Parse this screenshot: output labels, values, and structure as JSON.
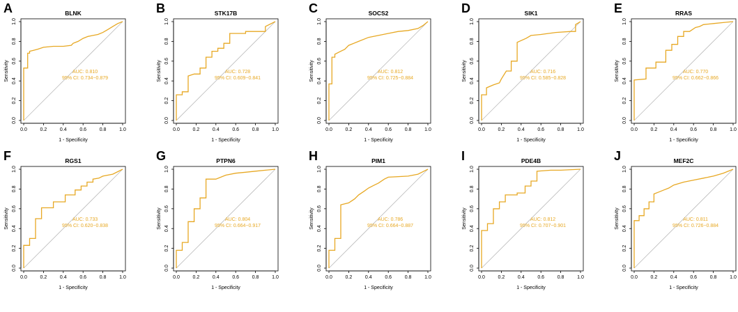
{
  "figure": {
    "curve_color": "#E7A823",
    "diagonal_color": "#BBBBBB",
    "axis_color": "#000000"
  },
  "chart_data": [
    {
      "type": "line",
      "panel": "A",
      "title": "BLNK",
      "xlabel": "1 - Specificity",
      "ylabel": "Sensitivity",
      "xlim": [
        0,
        1
      ],
      "ylim": [
        0,
        1
      ],
      "xticks": [
        "0.0",
        "0.2",
        "0.4",
        "0.6",
        "0.8",
        "1.0"
      ],
      "yticks": [
        "0.0",
        "0.2",
        "0.4",
        "0.6",
        "0.8",
        "1.0"
      ],
      "auc_label": "AUC: 0.810",
      "ci_label": "95% CI: 0.734−0.879",
      "x": [
        0,
        0,
        0.04,
        0.04,
        0.06,
        0.06,
        0.1,
        0.14,
        0.2,
        0.3,
        0.4,
        0.48,
        0.5,
        0.55,
        0.6,
        0.65,
        0.7,
        0.75,
        0.8,
        0.85,
        0.9,
        0.95,
        1
      ],
      "y": [
        0,
        0.53,
        0.53,
        0.68,
        0.68,
        0.7,
        0.71,
        0.72,
        0.74,
        0.75,
        0.75,
        0.76,
        0.78,
        0.8,
        0.83,
        0.85,
        0.86,
        0.87,
        0.89,
        0.92,
        0.95,
        0.98,
        1
      ]
    },
    {
      "type": "line",
      "panel": "B",
      "title": "STK17B",
      "xlabel": "1 - Specificity",
      "ylabel": "Sensitivity",
      "xlim": [
        0,
        1
      ],
      "ylim": [
        0,
        1
      ],
      "xticks": [
        "0.0",
        "0.2",
        "0.4",
        "0.6",
        "0.8",
        "1.0"
      ],
      "yticks": [
        "0.0",
        "0.2",
        "0.4",
        "0.6",
        "0.8",
        "1.0"
      ],
      "auc_label": "AUC: 0.728",
      "ci_label": "95% CI: 0.609−0.841",
      "x": [
        0,
        0,
        0.06,
        0.06,
        0.12,
        0.12,
        0.18,
        0.24,
        0.24,
        0.3,
        0.3,
        0.36,
        0.36,
        0.42,
        0.42,
        0.48,
        0.48,
        0.54,
        0.54,
        0.7,
        0.7,
        0.9,
        0.9,
        1
      ],
      "y": [
        0,
        0.26,
        0.26,
        0.29,
        0.29,
        0.45,
        0.47,
        0.47,
        0.53,
        0.53,
        0.64,
        0.64,
        0.7,
        0.7,
        0.73,
        0.73,
        0.78,
        0.78,
        0.88,
        0.88,
        0.9,
        0.9,
        0.95,
        1
      ]
    },
    {
      "type": "line",
      "panel": "C",
      "title": "SOCS2",
      "xlabel": "1 - Specificity",
      "ylabel": "Sensitivity",
      "xlim": [
        0,
        1
      ],
      "ylim": [
        0,
        1
      ],
      "xticks": [
        "0.0",
        "0.2",
        "0.4",
        "0.6",
        "0.8",
        "1.0"
      ],
      "yticks": [
        "0.0",
        "0.2",
        "0.4",
        "0.6",
        "0.8",
        "1.0"
      ],
      "auc_label": "AUC: 0.812",
      "ci_label": "95% CI: 0.725−0.884",
      "x": [
        0,
        0,
        0.03,
        0.03,
        0.06,
        0.06,
        0.12,
        0.16,
        0.2,
        0.3,
        0.4,
        0.5,
        0.6,
        0.7,
        0.8,
        0.9,
        0.95,
        1
      ],
      "y": [
        0,
        0.37,
        0.37,
        0.64,
        0.64,
        0.67,
        0.7,
        0.72,
        0.76,
        0.8,
        0.84,
        0.86,
        0.88,
        0.9,
        0.91,
        0.93,
        0.96,
        1
      ]
    },
    {
      "type": "line",
      "panel": "D",
      "title": "SIK1",
      "xlabel": "1 - Specificity",
      "ylabel": "Sensitivity",
      "xlim": [
        0,
        1
      ],
      "ylim": [
        0,
        1
      ],
      "xticks": [
        "0.0",
        "0.2",
        "0.4",
        "0.6",
        "0.8",
        "1.0"
      ],
      "yticks": [
        "0.0",
        "0.2",
        "0.4",
        "0.6",
        "0.8",
        "1.0"
      ],
      "auc_label": "AUC: 0.716",
      "ci_label": "95% CI: 0.585−0.828",
      "x": [
        0,
        0,
        0.05,
        0.05,
        0.12,
        0.18,
        0.2,
        0.25,
        0.3,
        0.3,
        0.36,
        0.36,
        0.45,
        0.5,
        0.6,
        0.75,
        0.9,
        0.95,
        0.95,
        1
      ],
      "y": [
        0,
        0.26,
        0.26,
        0.33,
        0.36,
        0.38,
        0.42,
        0.5,
        0.5,
        0.6,
        0.6,
        0.79,
        0.83,
        0.86,
        0.87,
        0.89,
        0.9,
        0.9,
        0.97,
        1
      ]
    },
    {
      "type": "line",
      "panel": "E",
      "title": "RRAS",
      "xlabel": "1 - Specificity",
      "ylabel": "Sensitivity",
      "xlim": [
        0,
        1
      ],
      "ylim": [
        0,
        1
      ],
      "xticks": [
        "0.0",
        "0.2",
        "0.4",
        "0.6",
        "0.8",
        "1.0"
      ],
      "yticks": [
        "0.0",
        "0.2",
        "0.4",
        "0.6",
        "0.8",
        "1.0"
      ],
      "auc_label": "AUC: 0.770",
      "ci_label": "95% CI: 0.662−0.866",
      "x": [
        0,
        0,
        0.12,
        0.12,
        0.22,
        0.22,
        0.32,
        0.32,
        0.38,
        0.38,
        0.44,
        0.44,
        0.5,
        0.5,
        0.56,
        0.62,
        0.66,
        0.7,
        0.8,
        0.9,
        1
      ],
      "y": [
        0,
        0.41,
        0.42,
        0.53,
        0.53,
        0.59,
        0.59,
        0.71,
        0.71,
        0.77,
        0.77,
        0.85,
        0.85,
        0.9,
        0.9,
        0.94,
        0.95,
        0.97,
        0.98,
        0.99,
        1
      ]
    },
    {
      "type": "line",
      "panel": "F",
      "title": "RGS1",
      "xlabel": "1 - Specificity",
      "ylabel": "Sensitivity",
      "xlim": [
        0,
        1
      ],
      "ylim": [
        0,
        1
      ],
      "xticks": [
        "0.0",
        "0.2",
        "0.4",
        "0.6",
        "0.8",
        "1.0"
      ],
      "yticks": [
        "0.0",
        "0.2",
        "0.4",
        "0.6",
        "0.8",
        "1.0"
      ],
      "auc_label": "AUC: 0.733",
      "ci_label": "95% CI: 0.620−0.838",
      "x": [
        0,
        0,
        0.06,
        0.06,
        0.12,
        0.12,
        0.18,
        0.18,
        0.3,
        0.3,
        0.42,
        0.42,
        0.52,
        0.52,
        0.58,
        0.58,
        0.64,
        0.64,
        0.7,
        0.7,
        0.76,
        0.8,
        0.9,
        1
      ],
      "y": [
        0,
        0.23,
        0.23,
        0.3,
        0.3,
        0.5,
        0.5,
        0.61,
        0.61,
        0.67,
        0.67,
        0.74,
        0.74,
        0.79,
        0.79,
        0.83,
        0.83,
        0.87,
        0.87,
        0.9,
        0.91,
        0.93,
        0.95,
        1
      ]
    },
    {
      "type": "line",
      "panel": "G",
      "title": "PTPN6",
      "xlabel": "1 - Specificity",
      "ylabel": "Sensitivity",
      "xlim": [
        0,
        1
      ],
      "ylim": [
        0,
        1
      ],
      "xticks": [
        "0.0",
        "0.2",
        "0.4",
        "0.6",
        "0.8",
        "1.0"
      ],
      "yticks": [
        "0.0",
        "0.2",
        "0.4",
        "0.6",
        "0.8",
        "1.0"
      ],
      "auc_label": "AUC: 0.804",
      "ci_label": "95% CI: 0.664−0.917",
      "x": [
        0,
        0,
        0.06,
        0.06,
        0.12,
        0.12,
        0.18,
        0.18,
        0.24,
        0.24,
        0.3,
        0.3,
        0.4,
        0.5,
        0.6,
        0.7,
        0.8,
        0.9,
        1
      ],
      "y": [
        0,
        0.18,
        0.18,
        0.26,
        0.26,
        0.47,
        0.47,
        0.6,
        0.6,
        0.71,
        0.71,
        0.9,
        0.9,
        0.94,
        0.96,
        0.97,
        0.98,
        0.99,
        1
      ]
    },
    {
      "type": "line",
      "panel": "H",
      "title": "PIM1",
      "xlabel": "1 - Specificity",
      "ylabel": "Sensitivity",
      "xlim": [
        0,
        1
      ],
      "ylim": [
        0,
        1
      ],
      "xticks": [
        "0.0",
        "0.2",
        "0.4",
        "0.6",
        "0.8",
        "1.0"
      ],
      "yticks": [
        "0.0",
        "0.2",
        "0.4",
        "0.6",
        "0.8",
        "1.0"
      ],
      "auc_label": "AUC: 0.786",
      "ci_label": "95% CI: 0.664−0.887",
      "x": [
        0,
        0,
        0.06,
        0.06,
        0.12,
        0.12,
        0.2,
        0.26,
        0.3,
        0.36,
        0.4,
        0.46,
        0.5,
        0.56,
        0.6,
        0.8,
        0.9,
        0.96,
        1
      ],
      "y": [
        0,
        0.18,
        0.18,
        0.3,
        0.3,
        0.64,
        0.66,
        0.7,
        0.74,
        0.78,
        0.81,
        0.84,
        0.86,
        0.9,
        0.92,
        0.93,
        0.95,
        0.98,
        1
      ]
    },
    {
      "type": "line",
      "panel": "I",
      "title": "PDE4B",
      "xlabel": "1 - Specificity",
      "ylabel": "Sensitivity",
      "xlim": [
        0,
        1
      ],
      "ylim": [
        0,
        1
      ],
      "xticks": [
        "0.0",
        "0.2",
        "0.4",
        "0.6",
        "0.8",
        "1.0"
      ],
      "yticks": [
        "0.0",
        "0.2",
        "0.4",
        "0.6",
        "0.8",
        "1.0"
      ],
      "auc_label": "AUC: 0.812",
      "ci_label": "95% CI: 0.707−0.901",
      "x": [
        0,
        0,
        0.06,
        0.06,
        0.12,
        0.12,
        0.18,
        0.18,
        0.24,
        0.24,
        0.36,
        0.36,
        0.44,
        0.44,
        0.5,
        0.5,
        0.56,
        0.56,
        0.7,
        0.8,
        1
      ],
      "y": [
        0,
        0.38,
        0.38,
        0.45,
        0.45,
        0.6,
        0.6,
        0.67,
        0.67,
        0.74,
        0.74,
        0.76,
        0.76,
        0.83,
        0.83,
        0.88,
        0.88,
        0.98,
        0.99,
        0.99,
        1
      ]
    },
    {
      "type": "line",
      "panel": "J",
      "title": "MEF2C",
      "xlabel": "1 - Specificity",
      "ylabel": "Sensitivity",
      "xlim": [
        0,
        1
      ],
      "ylim": [
        0,
        1
      ],
      "xticks": [
        "0.0",
        "0.2",
        "0.4",
        "0.6",
        "0.8",
        "1.0"
      ],
      "yticks": [
        "0.0",
        "0.2",
        "0.4",
        "0.6",
        "0.8",
        "1.0"
      ],
      "auc_label": "AUC: 0.811",
      "ci_label": "95% CI: 0.726−0.884",
      "x": [
        0,
        0,
        0.05,
        0.05,
        0.1,
        0.1,
        0.15,
        0.15,
        0.2,
        0.2,
        0.25,
        0.3,
        0.35,
        0.4,
        0.5,
        0.6,
        0.7,
        0.8,
        0.9,
        1
      ],
      "y": [
        0,
        0.48,
        0.48,
        0.53,
        0.53,
        0.6,
        0.6,
        0.67,
        0.67,
        0.75,
        0.77,
        0.79,
        0.81,
        0.84,
        0.87,
        0.89,
        0.91,
        0.93,
        0.96,
        1
      ]
    }
  ]
}
